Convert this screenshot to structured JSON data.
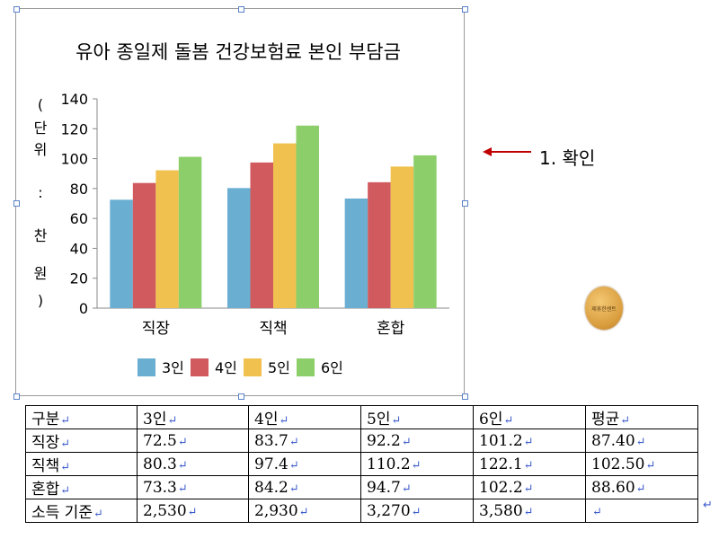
{
  "chart_data": {
    "type": "bar",
    "title": "유아 종일제 돌봄 건강보험료 본인 부담금",
    "ylabel": "(단위:찬원)",
    "ylabel_chars": [
      "(",
      "단",
      "위",
      ":",
      "찬",
      "원",
      ")"
    ],
    "ylim": [
      0,
      140
    ],
    "yticks": [
      0,
      20,
      40,
      60,
      80,
      100,
      120,
      140
    ],
    "categories": [
      "직장",
      "직책",
      "혼합"
    ],
    "series": [
      {
        "name": "3인",
        "color": "#6aaed2",
        "values": [
          72.5,
          80.3,
          73.3
        ]
      },
      {
        "name": "4인",
        "color": "#d05a5e",
        "values": [
          83.7,
          97.4,
          84.2
        ]
      },
      {
        "name": "5인",
        "color": "#f1c14f",
        "values": [
          92.2,
          110.2,
          94.7
        ]
      },
      {
        "name": "6인",
        "color": "#8ccf6a",
        "values": [
          101.2,
          122.1,
          102.2
        ]
      }
    ],
    "grid": false,
    "legend": "bottom"
  },
  "annotation": {
    "text": "1. 확인",
    "arrow_color": "#c00000"
  },
  "table": {
    "rows": [
      [
        "구분",
        "3인",
        "4인",
        "5인",
        "6인",
        "평균"
      ],
      [
        "직장",
        "72.5",
        "83.7",
        "92.2",
        "101.2",
        "87.40"
      ],
      [
        "직책",
        "80.3",
        "97.4",
        "110.2",
        "122.1",
        "102.50"
      ],
      [
        "혼합",
        "73.3",
        "84.2",
        "94.7",
        "102.2",
        "88.60"
      ],
      [
        "소득 기준",
        "2,530",
        "2,930",
        "3,270",
        "3,580",
        ""
      ]
    ]
  }
}
